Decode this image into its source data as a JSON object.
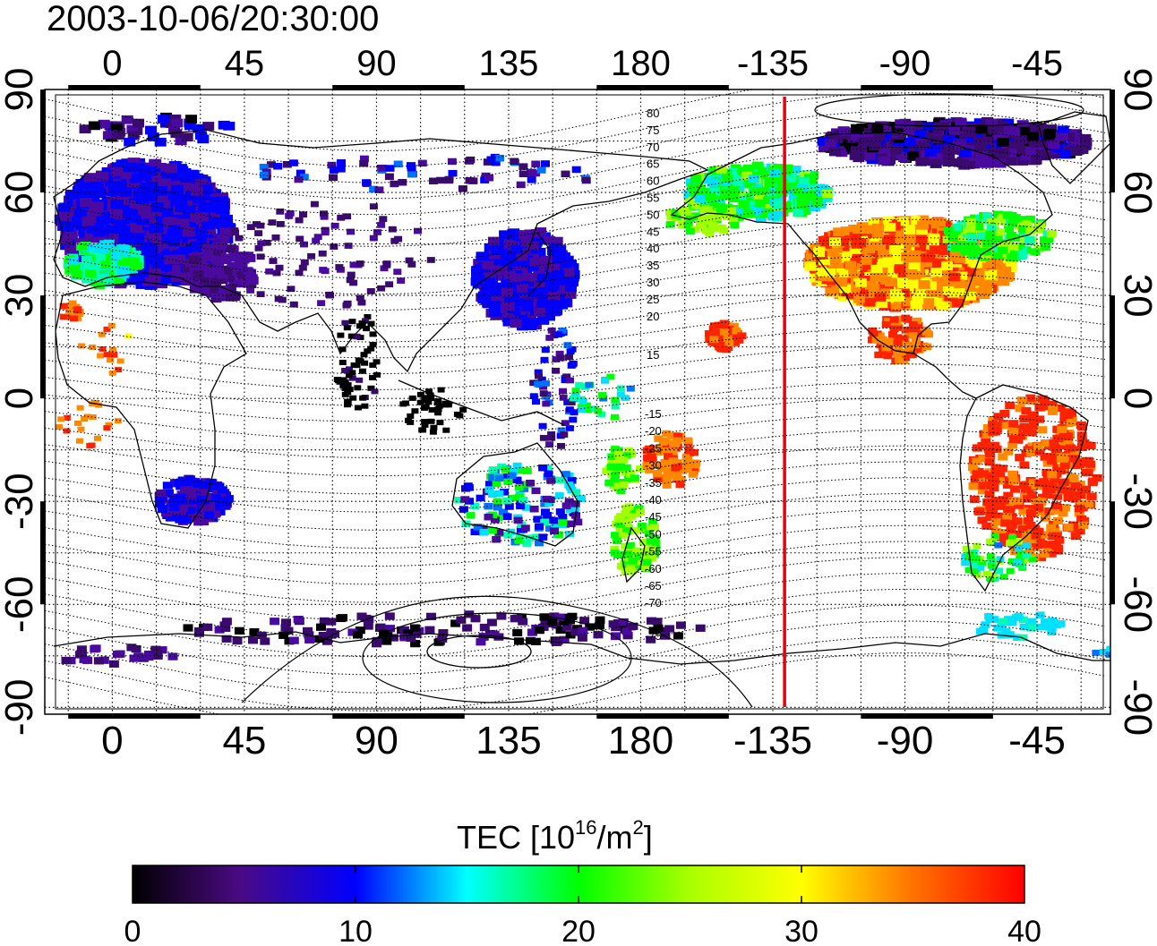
{
  "title": "2003-10-06/20:30:00",
  "map": {
    "lon_ticks": [
      {
        "lon": 0,
        "label": "0"
      },
      {
        "lon": 45,
        "label": "45"
      },
      {
        "lon": 90,
        "label": "90"
      },
      {
        "lon": 135,
        "label": "135"
      },
      {
        "lon": 180,
        "label": "180"
      },
      {
        "lon": 225,
        "label": "-135"
      },
      {
        "lon": 270,
        "label": "-90"
      },
      {
        "lon": 315,
        "label": "-45"
      }
    ],
    "lat_ticks": [
      {
        "lat": 90,
        "label": "90"
      },
      {
        "lat": 60,
        "label": "60"
      },
      {
        "lat": 30,
        "label": "30"
      },
      {
        "lat": 0,
        "label": "0"
      },
      {
        "lat": -30,
        "label": "-30"
      },
      {
        "lat": -60,
        "label": "-60"
      },
      {
        "lat": -90,
        "label": "-90"
      }
    ],
    "lon_range": [
      -23,
      340
    ],
    "lat_range": [
      -92,
      90
    ],
    "grid": "dotted-15-degree",
    "terminator_longitude": "-131",
    "terminator_color": "#e8000e",
    "contour_labels_north": [
      "80",
      "75",
      "70",
      "65",
      "60",
      "55",
      "50",
      "45",
      "40",
      "35",
      "30",
      "25",
      "20",
      "15"
    ],
    "contour_labels_south": [
      "-15",
      "-20",
      "-25",
      "-30",
      "-35",
      "-40",
      "-45",
      "-50",
      "-55",
      "-60",
      "-65",
      "-70",
      "-75"
    ]
  },
  "colorbar": {
    "label_prefix": "TEC  [10",
    "label_exp1": "16",
    "label_mid": "/m",
    "label_exp2": "2",
    "label_suffix": "]",
    "min": 0,
    "max": 40,
    "ticks": [
      "0",
      "10",
      "20",
      "30",
      "40"
    ],
    "colors": [
      "#000000",
      "#4a0a82",
      "#0000ff",
      "#00ffff",
      "#00ff00",
      "#ffff00",
      "#ff7700",
      "#ff0000"
    ]
  }
}
